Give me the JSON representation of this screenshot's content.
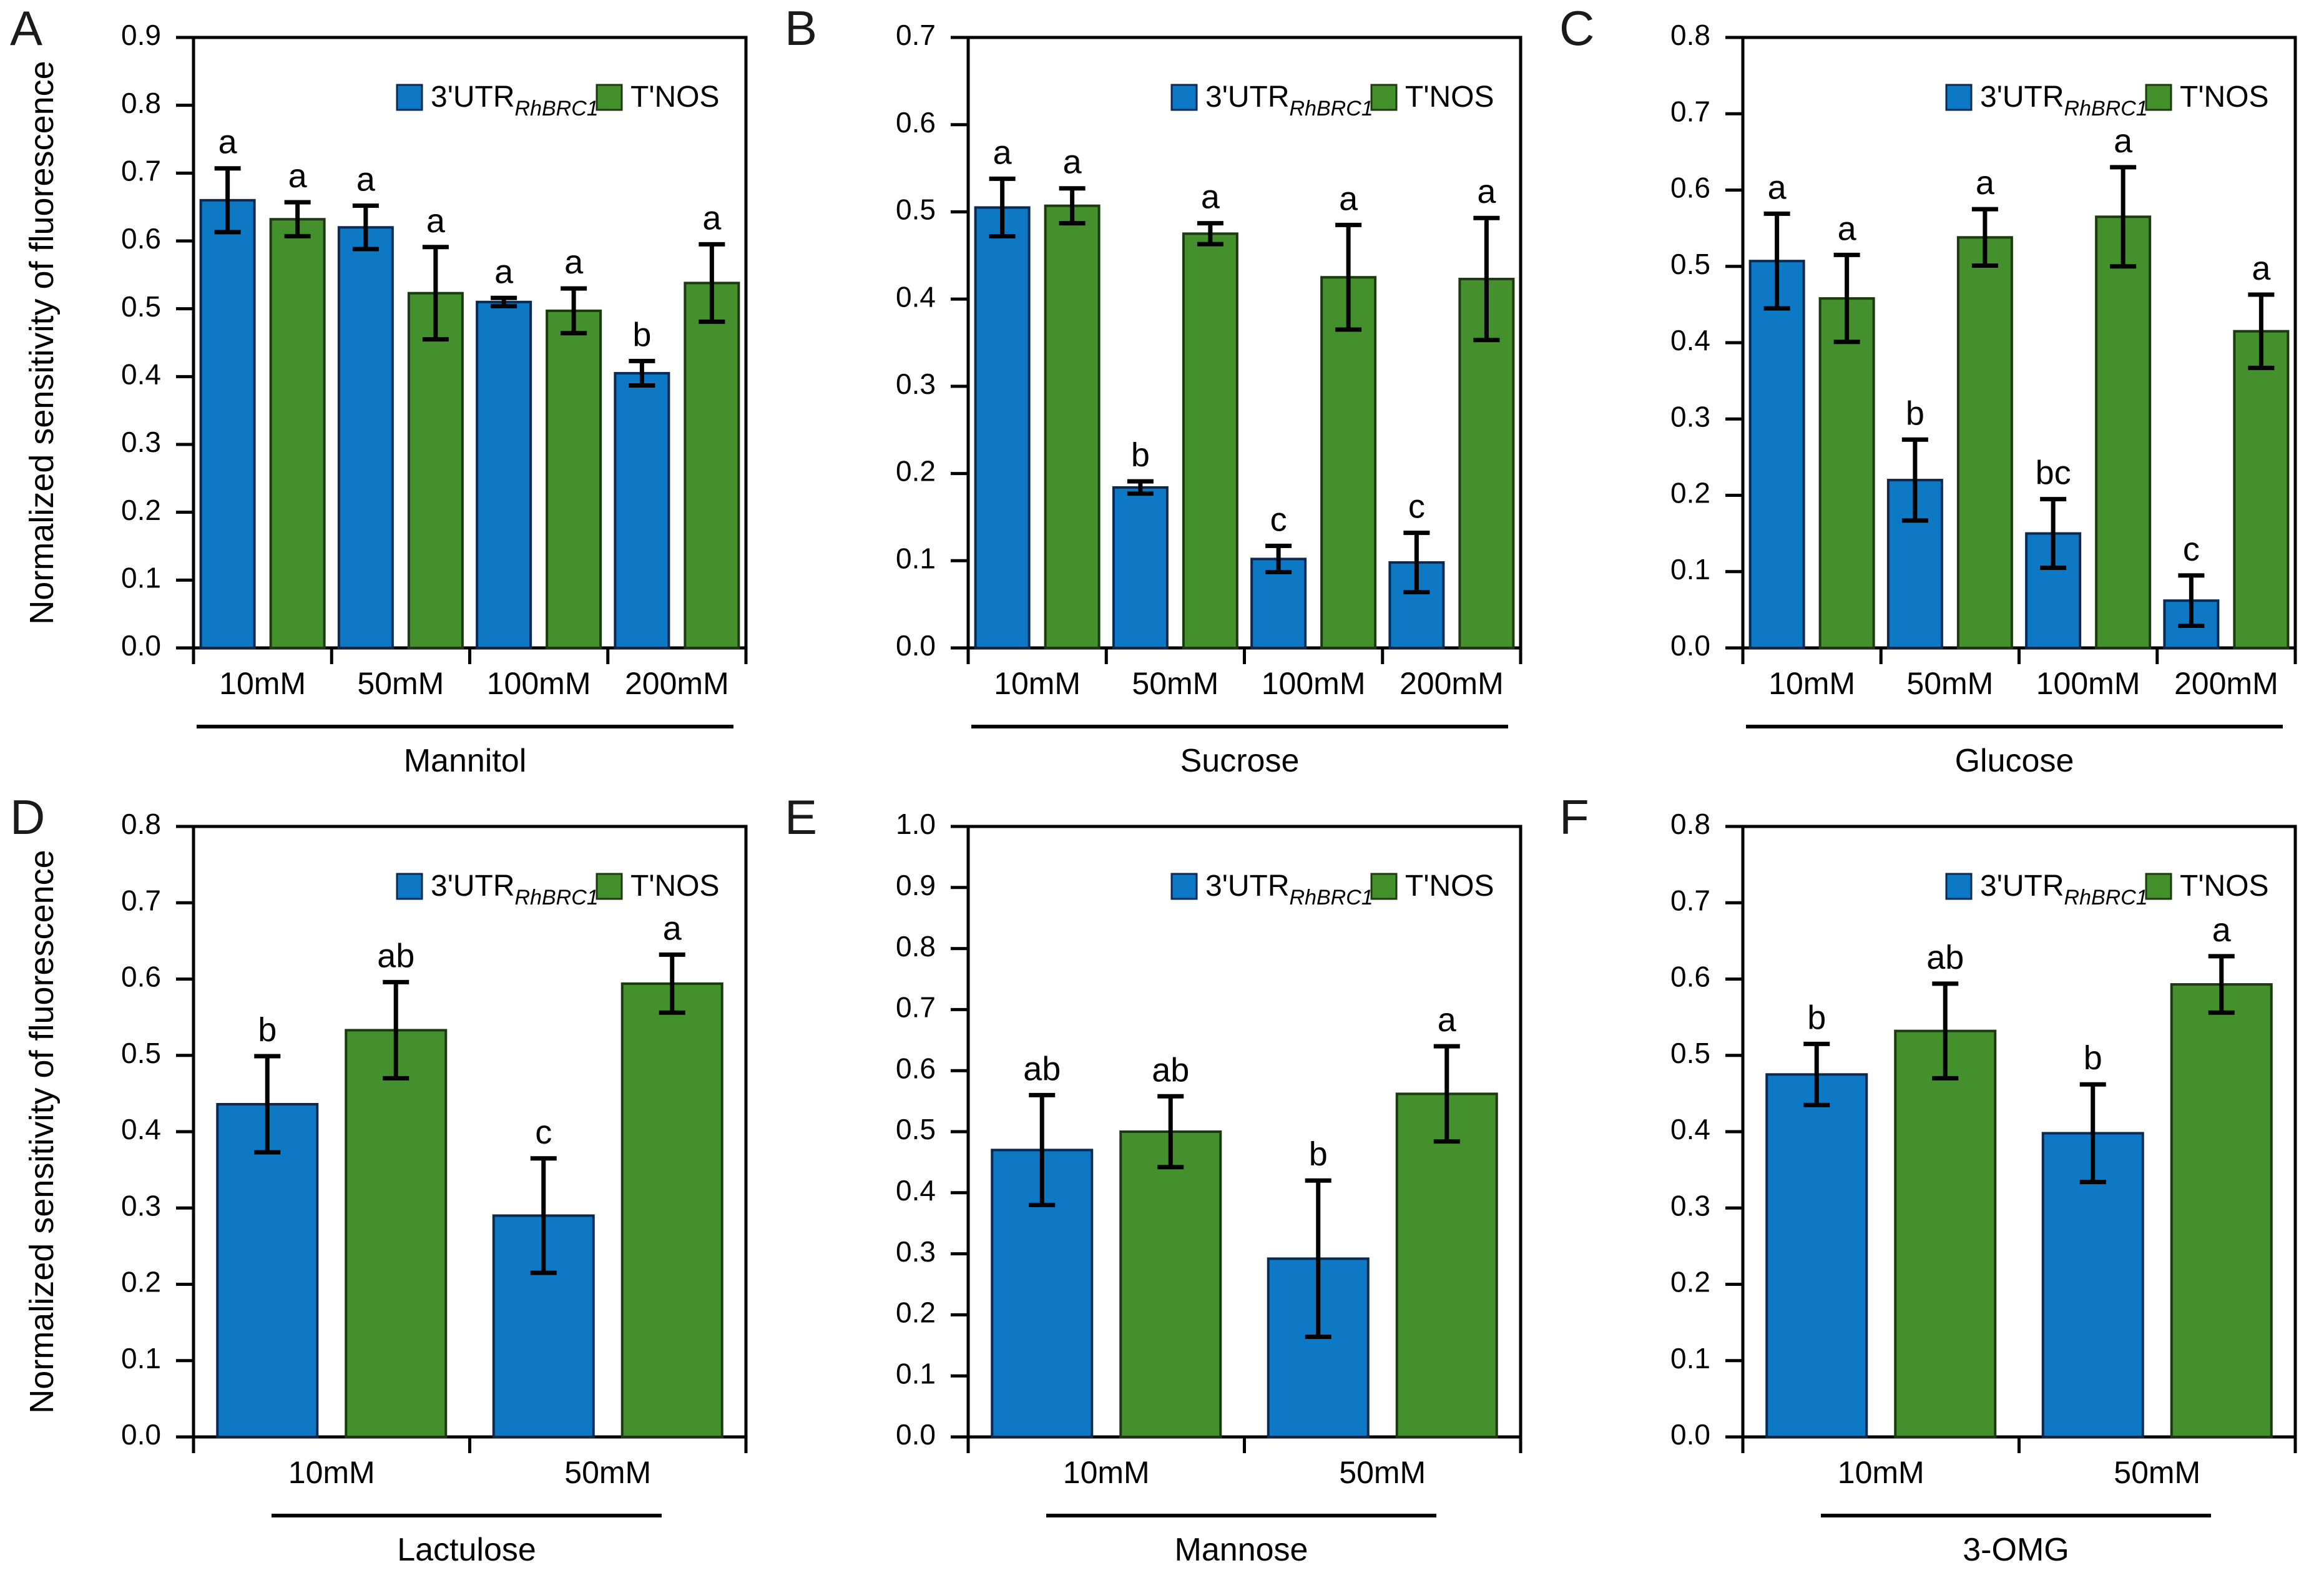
{
  "figure": {
    "ylabel": "Normalized sensitivity of fluorescence",
    "legend": {
      "series": [
        {
          "label_prefix": "3'UTR",
          "label_sub": "RhBRC1",
          "color": "#0d78c4",
          "border": "#0b2a52"
        },
        {
          "label": "T'NOS",
          "color": "#44902c",
          "border": "#1c3a10"
        }
      ]
    },
    "axis_color": "#000000"
  },
  "chart_data": [
    {
      "panel": "A",
      "type": "bar",
      "xlabel": "Mannitol",
      "ylabel": "Normalized sensitivity of fluorescence",
      "show_ylabel": true,
      "categories": [
        "10mM",
        "50mM",
        "100mM",
        "200mM"
      ],
      "ylim": [
        0,
        0.9
      ],
      "ytick_step": 0.1,
      "grid": false,
      "legend_position": "top-right",
      "series": [
        {
          "name": "3'UTR_RhBRC1",
          "values": [
            0.66,
            0.62,
            0.51,
            0.405
          ],
          "errors": [
            0.047,
            0.032,
            0.006,
            0.018
          ],
          "letters": [
            "a",
            "a",
            "a",
            "b"
          ]
        },
        {
          "name": "T'NOS",
          "values": [
            0.632,
            0.523,
            0.497,
            0.538
          ],
          "errors": [
            0.025,
            0.068,
            0.033,
            0.057
          ],
          "letters": [
            "a",
            "a",
            "a",
            "a"
          ]
        }
      ]
    },
    {
      "panel": "B",
      "type": "bar",
      "xlabel": "Sucrose",
      "ylabel": "",
      "show_ylabel": false,
      "categories": [
        "10mM",
        "50mM",
        "100mM",
        "200mM"
      ],
      "ylim": [
        0,
        0.7
      ],
      "ytick_step": 0.1,
      "grid": false,
      "legend_position": "top-right",
      "series": [
        {
          "name": "3'UTR_RhBRC1",
          "values": [
            0.505,
            0.184,
            0.102,
            0.098
          ],
          "errors": [
            0.033,
            0.007,
            0.015,
            0.034
          ],
          "letters": [
            "a",
            "b",
            "c",
            "c"
          ]
        },
        {
          "name": "T'NOS",
          "values": [
            0.507,
            0.475,
            0.425,
            0.423
          ],
          "errors": [
            0.02,
            0.012,
            0.06,
            0.07
          ],
          "letters": [
            "a",
            "a",
            "a",
            "a"
          ]
        }
      ]
    },
    {
      "panel": "C",
      "type": "bar",
      "xlabel": "Glucose",
      "ylabel": "",
      "show_ylabel": false,
      "categories": [
        "10mM",
        "50mM",
        "100mM",
        "200mM"
      ],
      "ylim": [
        0,
        0.8
      ],
      "ytick_step": 0.1,
      "grid": false,
      "legend_position": "top-right",
      "series": [
        {
          "name": "3'UTR_RhBRC1",
          "values": [
            0.507,
            0.22,
            0.15,
            0.062
          ],
          "errors": [
            0.062,
            0.053,
            0.045,
            0.033
          ],
          "letters": [
            "a",
            "b",
            "bc",
            "c"
          ]
        },
        {
          "name": "T'NOS",
          "values": [
            0.458,
            0.538,
            0.565,
            0.415
          ],
          "errors": [
            0.057,
            0.037,
            0.065,
            0.048
          ],
          "letters": [
            "a",
            "a",
            "a",
            "a"
          ]
        }
      ]
    },
    {
      "panel": "D",
      "type": "bar",
      "xlabel": "Lactulose",
      "ylabel": "Normalized sensitivity of fluorescence",
      "show_ylabel": true,
      "categories": [
        "10mM",
        "50mM"
      ],
      "ylim": [
        0,
        0.8
      ],
      "ytick_step": 0.1,
      "grid": false,
      "legend_position": "top-right",
      "series": [
        {
          "name": "3'UTR_RhBRC1",
          "values": [
            0.436,
            0.29
          ],
          "errors": [
            0.063,
            0.075
          ],
          "letters": [
            "b",
            "c"
          ]
        },
        {
          "name": "T'NOS",
          "values": [
            0.533,
            0.594
          ],
          "errors": [
            0.063,
            0.038
          ],
          "letters": [
            "ab",
            "a"
          ]
        }
      ]
    },
    {
      "panel": "E",
      "type": "bar",
      "xlabel": "Mannose",
      "ylabel": "",
      "show_ylabel": false,
      "categories": [
        "10mM",
        "50mM"
      ],
      "ylim": [
        0,
        1.0
      ],
      "ytick_step": 0.1,
      "grid": false,
      "legend_position": "top-right",
      "series": [
        {
          "name": "3'UTR_RhBRC1",
          "values": [
            0.47,
            0.292
          ],
          "errors": [
            0.09,
            0.128
          ],
          "letters": [
            "ab",
            "b"
          ]
        },
        {
          "name": "T'NOS",
          "values": [
            0.5,
            0.562
          ],
          "errors": [
            0.058,
            0.078
          ],
          "letters": [
            "ab",
            "a"
          ]
        }
      ]
    },
    {
      "panel": "F",
      "type": "bar",
      "xlabel": "3-OMG",
      "ylabel": "",
      "show_ylabel": false,
      "categories": [
        "10mM",
        "50mM"
      ],
      "ylim": [
        0,
        0.8
      ],
      "ytick_step": 0.1,
      "grid": false,
      "legend_position": "top-right",
      "series": [
        {
          "name": "3'UTR_RhBRC1",
          "values": [
            0.475,
            0.398
          ],
          "errors": [
            0.04,
            0.064
          ],
          "letters": [
            "b",
            "b"
          ]
        },
        {
          "name": "T'NOS",
          "values": [
            0.532,
            0.593
          ],
          "errors": [
            0.062,
            0.037
          ],
          "letters": [
            "ab",
            "a"
          ]
        }
      ]
    }
  ]
}
